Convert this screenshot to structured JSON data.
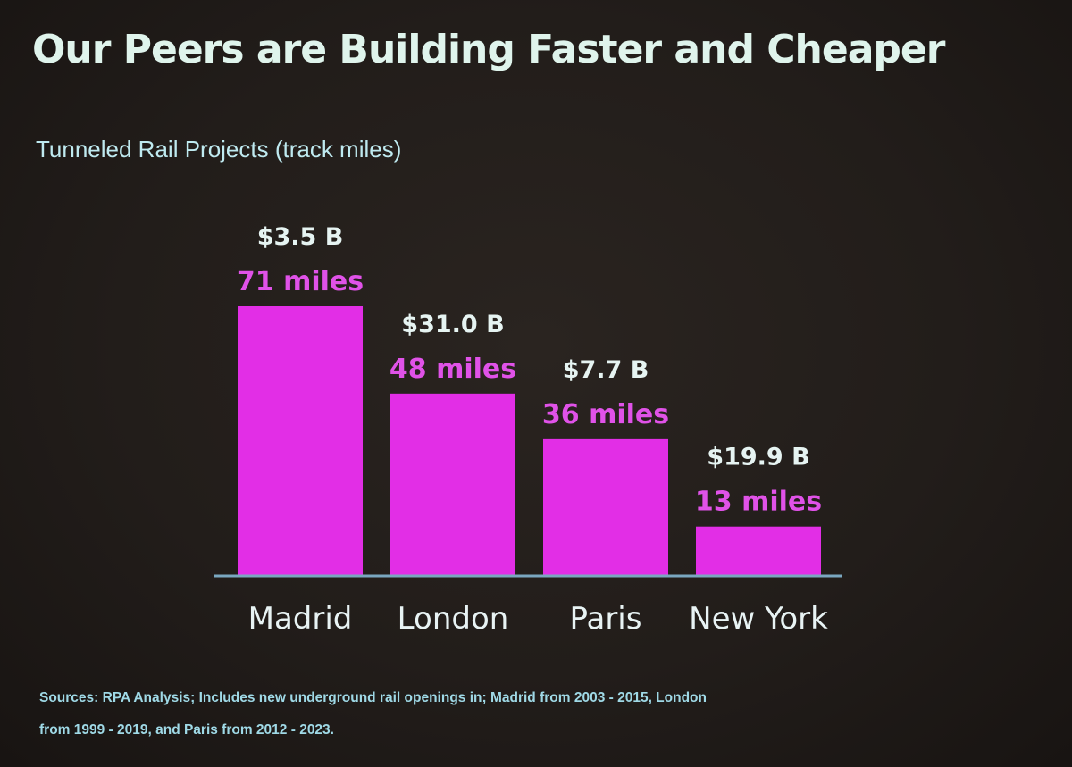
{
  "slide": {
    "title": "Our Peers are Building Faster and Cheaper",
    "subtitle": "Tunneled Rail Projects (track miles)",
    "sources": "Sources: RPA Analysis; Includes new underground rail openings in; Madrid from 2003 - 2015, London from 1999 - 2019, and Paris from 2012 - 2023."
  },
  "colors": {
    "bar": "#e22ee6",
    "baseline": "#7aa7c0",
    "title": "#dff4ec",
    "miles_label": "#e052e8"
  },
  "chart_data": {
    "type": "bar",
    "title": "Tunneled Rail Projects (track miles)",
    "categories": [
      "Madrid",
      "London",
      "Paris",
      "New York"
    ],
    "values": [
      71,
      48,
      36,
      13
    ],
    "value_labels": [
      "71 miles",
      "48 miles",
      "36 miles",
      "13 miles"
    ],
    "cost_labels": [
      "$3.5 B",
      "$31.0 B",
      "$7.7 B",
      "$19.9 B"
    ],
    "ylim": [
      0,
      71
    ],
    "grid": false,
    "legend": "none"
  }
}
